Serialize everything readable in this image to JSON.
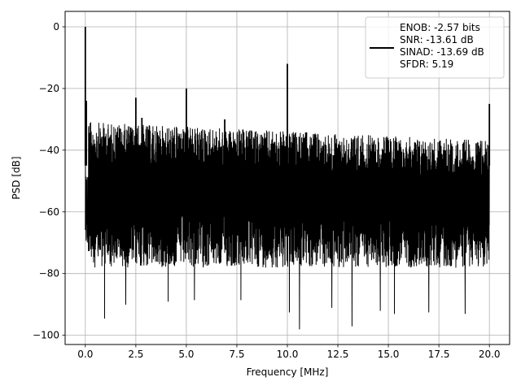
{
  "chart_data": {
    "type": "line",
    "title": "",
    "xlabel": "Frequency [MHz]",
    "ylabel": "PSD [dB]",
    "xlim": [
      -1.0,
      21.0
    ],
    "ylim": [
      -103,
      5
    ],
    "xticks": [
      0.0,
      2.5,
      5.0,
      7.5,
      10.0,
      12.5,
      15.0,
      17.5,
      20.0
    ],
    "xtick_labels": [
      "0.0",
      "2.5",
      "5.0",
      "7.5",
      "10.0",
      "12.5",
      "15.0",
      "17.5",
      "20.0"
    ],
    "yticks": [
      0,
      -20,
      -40,
      -60,
      -80,
      -100
    ],
    "ytick_labels": [
      "0",
      "−20",
      "−40",
      "−60",
      "−80",
      "−100"
    ],
    "grid": true,
    "legend_position": "top-right",
    "series": [
      {
        "name": "ENOB: -2.57 bits\nSNR: -13.61 dB\nSINAD: -13.69 dB\nSFDR: 5.19",
        "color": "#000000",
        "noise_band": {
          "x_range": [
            0.0,
            20.0
          ],
          "typical_range_db": [
            -76,
            -32
          ],
          "upper_envelope_db": [
            [
              0.2,
              -31
            ],
            [
              5.0,
              -32.5
            ],
            [
              10.0,
              -34
            ],
            [
              15.0,
              -35.5
            ],
            [
              20.0,
              -37
            ]
          ],
          "deep_minima": [
            [
              0.95,
              -94.5
            ],
            [
              2.0,
              -90
            ],
            [
              4.1,
              -89
            ],
            [
              5.4,
              -88.5
            ],
            [
              7.7,
              -88.5
            ],
            [
              10.1,
              -92.5
            ],
            [
              10.6,
              -98
            ],
            [
              12.2,
              -91
            ],
            [
              13.2,
              -97
            ],
            [
              14.6,
              -92
            ],
            [
              15.3,
              -93
            ],
            [
              17.0,
              -92.5
            ],
            [
              18.8,
              -93
            ]
          ]
        },
        "spikes": [
          {
            "x": 0.0,
            "y": 0
          },
          {
            "x": 0.05,
            "y": -24
          },
          {
            "x": 2.5,
            "y": -23
          },
          {
            "x": 2.8,
            "y": -29.5
          },
          {
            "x": 5.0,
            "y": -20
          },
          {
            "x": 6.9,
            "y": -30
          },
          {
            "x": 10.0,
            "y": -12
          },
          {
            "x": 20.0,
            "y": -25
          }
        ]
      }
    ],
    "legend_lines": [
      "ENOB: -2.57 bits",
      "SNR: -13.61 dB",
      "SINAD: -13.69 dB",
      "SFDR: 5.19"
    ]
  }
}
